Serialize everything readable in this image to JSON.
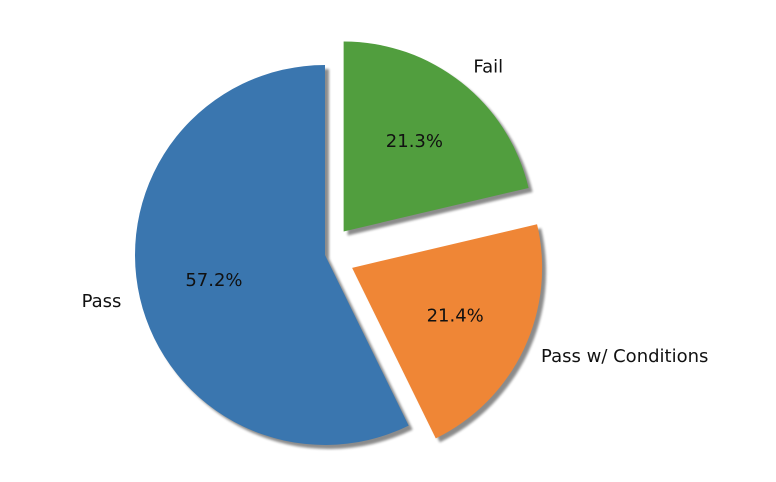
{
  "chart_data": {
    "type": "pie",
    "title": "",
    "slices": [
      {
        "label": "Pass",
        "percent": 57.2,
        "percent_label": "57.2%",
        "color": "#3a76af",
        "exploded": false
      },
      {
        "label": "Pass w/ Conditions",
        "percent": 21.4,
        "percent_label": "21.4%",
        "color": "#ef8636",
        "exploded": true
      },
      {
        "label": "Fail",
        "percent": 21.3,
        "percent_label": "21.3%",
        "color": "#519e3e",
        "exploded": true
      }
    ],
    "start_angle_deg": 90,
    "direction": "counterclockwise",
    "shadow": true,
    "legend": "none"
  }
}
